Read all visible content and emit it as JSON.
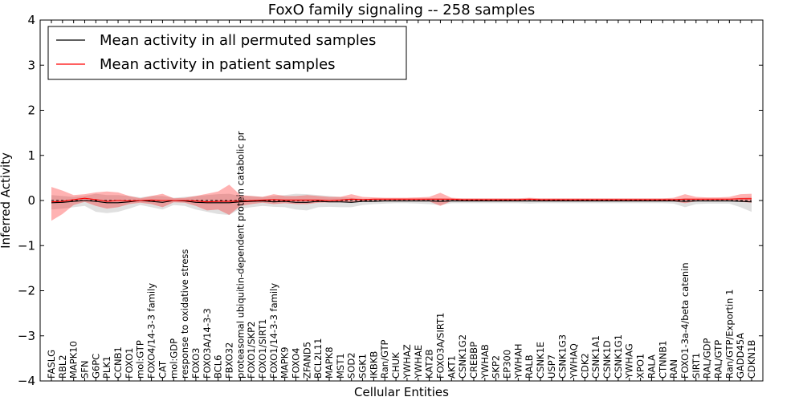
{
  "chart_data": {
    "type": "line",
    "title": "FoxO family signaling -- 258 samples",
    "xlabel": "Cellular Entities",
    "ylabel": "Inferred Activity",
    "ylim": [
      -4,
      4
    ],
    "yticks": [
      -4,
      -3,
      -2,
      -1,
      0,
      1,
      2,
      3,
      4
    ],
    "ytick_labels": [
      "−4",
      "−3",
      "−2",
      "−1",
      "0",
      "1",
      "2",
      "3",
      "4"
    ],
    "grid": false,
    "legend_position": "top-left",
    "categories": [
      "FASLG",
      "RBL2",
      "MAPK10",
      "SFN",
      "G6PC",
      "PLK1",
      "CCNB1",
      "FOXO1",
      "mol:GTP",
      "FOXO4/14-3-3 family",
      "CAT",
      "mol:GDP",
      "response to oxidative stress",
      "FOXO3",
      "FOXO3A/14-3-3",
      "BCL6",
      "FBXO32",
      "proteasomal ubiquitin-dependent protein catabolic pr",
      "FOXO1/SKP2",
      "FOXO1/SIRT1",
      "FOXO1/14-3-3 family",
      "MAPK9",
      "FOXO4",
      "ZFAND5",
      "BCL2L11",
      "MAPK8",
      "MST1",
      "SOD2",
      "SGK1",
      "IKBKB",
      "Ran/GTP",
      "CHUK",
      "YWHAZ",
      "YWHAE",
      "KAT2B",
      "FOXO3A/SIRT1",
      "AKT1",
      "CSNK1G2",
      "CREBBP",
      "YWHAB",
      "SKP2",
      "EP300",
      "YWHAH",
      "RALB",
      "CSNK1E",
      "USP7",
      "CSNK1G3",
      "YWHAQ",
      "CDK2",
      "CSNK1A1",
      "CSNK1D",
      "CSNK1G1",
      "YWHAG",
      "XPO1",
      "RALA",
      "CTNNB1",
      "RAN",
      "FOXO1-3a-4/beta catenin",
      "SIRT1",
      "RAL/GDP",
      "RAL/GTP",
      "Ran/GTP/Exportin 1",
      "GADD45A",
      "CDKN1B"
    ],
    "series": [
      {
        "name": "Mean activity in all permuted samples",
        "color": "#000000",
        "values": [
          -0.05,
          -0.04,
          -0.02,
          0.0,
          -0.02,
          -0.05,
          -0.05,
          -0.03,
          0.0,
          -0.02,
          -0.04,
          0.0,
          -0.01,
          -0.04,
          -0.05,
          -0.05,
          -0.05,
          -0.03,
          -0.02,
          -0.01,
          -0.03,
          -0.02,
          -0.04,
          -0.04,
          -0.02,
          -0.03,
          -0.03,
          -0.04,
          -0.02,
          -0.02,
          -0.01,
          -0.01,
          -0.01,
          -0.01,
          -0.01,
          -0.02,
          -0.01,
          -0.01,
          -0.01,
          -0.01,
          -0.01,
          -0.01,
          -0.01,
          -0.01,
          -0.01,
          -0.01,
          -0.01,
          -0.01,
          -0.01,
          -0.01,
          -0.01,
          -0.01,
          -0.01,
          -0.01,
          -0.01,
          -0.01,
          -0.01,
          -0.02,
          -0.01,
          -0.01,
          -0.01,
          -0.01,
          -0.02,
          -0.03
        ],
        "lower": [
          -0.2,
          -0.18,
          -0.15,
          -0.12,
          -0.25,
          -0.28,
          -0.25,
          -0.18,
          -0.1,
          -0.15,
          -0.2,
          -0.1,
          -0.12,
          -0.2,
          -0.25,
          -0.3,
          -0.32,
          -0.18,
          -0.15,
          -0.12,
          -0.14,
          -0.15,
          -0.2,
          -0.22,
          -0.15,
          -0.14,
          -0.15,
          -0.15,
          -0.1,
          -0.08,
          -0.07,
          -0.06,
          -0.06,
          -0.07,
          -0.08,
          -0.1,
          -0.06,
          -0.06,
          -0.06,
          -0.06,
          -0.06,
          -0.06,
          -0.06,
          -0.07,
          -0.06,
          -0.06,
          -0.06,
          -0.06,
          -0.06,
          -0.06,
          -0.06,
          -0.06,
          -0.06,
          -0.06,
          -0.06,
          -0.06,
          -0.07,
          -0.15,
          -0.08,
          -0.07,
          -0.07,
          -0.07,
          -0.15,
          -0.25
        ],
        "upper": [
          0.12,
          0.1,
          0.08,
          0.1,
          0.15,
          0.12,
          0.12,
          0.1,
          0.07,
          0.1,
          0.1,
          0.06,
          0.08,
          0.1,
          0.12,
          0.14,
          0.15,
          0.1,
          0.1,
          0.08,
          0.1,
          0.12,
          0.15,
          0.14,
          0.12,
          0.1,
          0.08,
          0.06,
          0.04,
          0.04,
          0.04,
          0.04,
          0.04,
          0.04,
          0.05,
          0.05,
          0.04,
          0.04,
          0.04,
          0.04,
          0.04,
          0.04,
          0.04,
          0.04,
          0.04,
          0.04,
          0.04,
          0.04,
          0.04,
          0.04,
          0.04,
          0.04,
          0.04,
          0.04,
          0.04,
          0.04,
          0.04,
          0.05,
          0.04,
          0.04,
          0.04,
          0.04,
          0.06,
          0.08
        ]
      },
      {
        "name": "Mean activity in patient samples",
        "color": "#ff0000",
        "values": [
          -0.03,
          -0.02,
          0.02,
          0.05,
          0.02,
          -0.02,
          0.0,
          -0.01,
          0.0,
          0.01,
          0.0,
          0.0,
          0.0,
          -0.01,
          -0.03,
          -0.02,
          -0.02,
          -0.01,
          0.0,
          0.01,
          0.02,
          0.01,
          0.01,
          0.01,
          0.01,
          0.0,
          0.01,
          0.03,
          0.02,
          0.03,
          0.03,
          0.03,
          0.03,
          0.03,
          0.03,
          0.03,
          0.03,
          0.02,
          0.02,
          0.02,
          0.02,
          0.02,
          0.02,
          0.03,
          0.02,
          0.02,
          0.02,
          0.02,
          0.02,
          0.02,
          0.02,
          0.02,
          0.02,
          0.02,
          0.02,
          0.02,
          0.02,
          0.03,
          0.03,
          0.03,
          0.03,
          0.03,
          0.04,
          0.04
        ],
        "lower": [
          -0.45,
          -0.3,
          -0.1,
          -0.03,
          -0.12,
          -0.18,
          -0.15,
          -0.08,
          -0.05,
          -0.08,
          -0.15,
          -0.04,
          -0.05,
          -0.12,
          -0.22,
          -0.2,
          -0.32,
          -0.12,
          -0.08,
          -0.05,
          -0.08,
          -0.06,
          -0.08,
          -0.08,
          -0.05,
          -0.04,
          -0.04,
          -0.04,
          -0.02,
          -0.01,
          -0.01,
          -0.01,
          -0.01,
          -0.02,
          -0.02,
          -0.12,
          -0.01,
          -0.01,
          -0.01,
          -0.01,
          -0.01,
          -0.01,
          -0.01,
          -0.01,
          -0.01,
          -0.01,
          -0.01,
          -0.01,
          -0.01,
          -0.01,
          -0.01,
          -0.01,
          -0.01,
          -0.01,
          -0.01,
          -0.01,
          -0.02,
          -0.06,
          -0.02,
          -0.01,
          -0.01,
          -0.01,
          -0.03,
          -0.05
        ],
        "upper": [
          0.3,
          0.22,
          0.12,
          0.14,
          0.18,
          0.2,
          0.18,
          0.1,
          0.05,
          0.1,
          0.15,
          0.05,
          0.06,
          0.1,
          0.15,
          0.2,
          0.35,
          0.12,
          0.1,
          0.08,
          0.14,
          0.1,
          0.1,
          0.12,
          0.1,
          0.08,
          0.08,
          0.14,
          0.08,
          0.07,
          0.06,
          0.06,
          0.06,
          0.07,
          0.08,
          0.17,
          0.06,
          0.05,
          0.05,
          0.05,
          0.05,
          0.05,
          0.05,
          0.06,
          0.05,
          0.05,
          0.05,
          0.05,
          0.05,
          0.05,
          0.05,
          0.05,
          0.05,
          0.05,
          0.05,
          0.05,
          0.06,
          0.14,
          0.08,
          0.07,
          0.07,
          0.08,
          0.14,
          0.15
        ]
      }
    ]
  }
}
